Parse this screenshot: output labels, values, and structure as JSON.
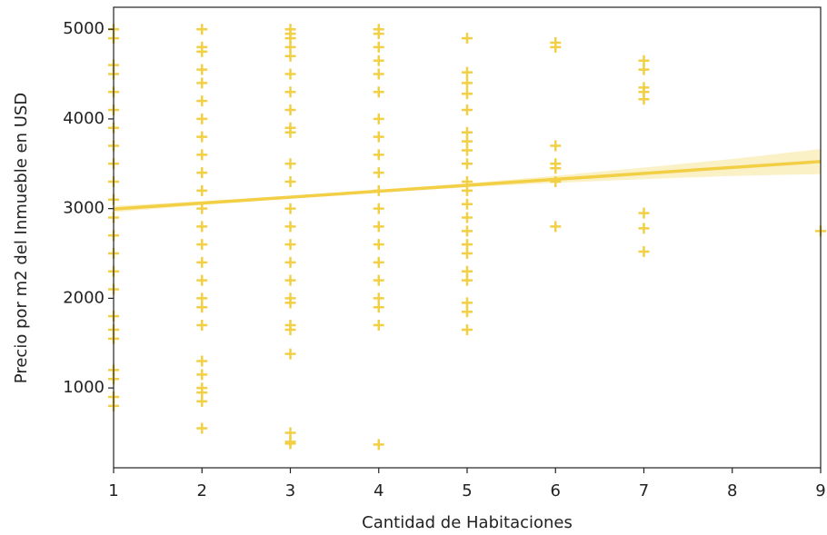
{
  "chart_data": {
    "type": "scatter",
    "xlabel": "Cantidad de Habitaciones",
    "ylabel": "Precio por m2 del Inmueble en USD",
    "color": "#f2cf45",
    "marker": "+",
    "x": [
      1,
      1,
      1,
      1,
      1,
      1,
      1,
      1,
      1,
      1,
      1,
      1,
      1,
      1,
      1,
      1,
      1,
      1,
      1,
      1,
      1,
      1,
      1,
      2,
      2,
      2,
      2,
      2,
      2,
      2,
      2,
      2,
      2,
      2,
      2,
      2,
      2,
      2,
      2,
      2,
      2,
      2,
      2,
      2,
      2,
      2,
      2,
      2,
      3,
      3,
      3,
      3,
      3,
      3,
      3,
      3,
      3,
      3,
      3,
      3,
      3,
      3,
      3,
      3,
      3,
      3,
      3,
      3,
      3,
      3,
      3,
      3,
      3,
      4,
      4,
      4,
      4,
      4,
      4,
      4,
      4,
      4,
      4,
      4,
      4,
      4,
      4,
      4,
      4,
      4,
      4,
      4,
      4,
      5,
      5,
      5,
      5,
      5,
      5,
      5,
      5,
      5,
      5,
      5,
      5,
      5,
      5,
      5,
      5,
      5,
      5,
      5,
      5,
      5,
      6,
      6,
      6,
      6,
      6,
      6,
      6,
      7,
      7,
      7,
      7,
      7,
      7,
      7,
      7,
      9
    ],
    "values": [
      5000,
      4900,
      4600,
      4500,
      4300,
      4100,
      3900,
      3700,
      3500,
      3300,
      3100,
      2900,
      2700,
      2500,
      2300,
      2100,
      1800,
      1650,
      1550,
      1200,
      1100,
      900,
      800,
      5000,
      4800,
      4750,
      4550,
      4400,
      4200,
      4000,
      3800,
      3600,
      3400,
      3200,
      3000,
      2800,
      2600,
      2400,
      2200,
      2000,
      1900,
      1700,
      1300,
      1150,
      1000,
      950,
      850,
      550,
      5000,
      4950,
      4900,
      4800,
      4700,
      4500,
      4300,
      4100,
      3900,
      3850,
      3500,
      3300,
      3000,
      2800,
      2600,
      2400,
      2200,
      2000,
      1950,
      1700,
      1650,
      1380,
      500,
      400,
      380,
      5000,
      4950,
      4800,
      4650,
      4500,
      4300,
      4000,
      3800,
      3600,
      3400,
      3200,
      3000,
      2800,
      2600,
      2400,
      2200,
      2000,
      1900,
      1700,
      370,
      4900,
      4520,
      4400,
      4280,
      4100,
      3850,
      3750,
      3650,
      3500,
      3300,
      3200,
      3050,
      2900,
      2750,
      2600,
      2500,
      2300,
      2200,
      1950,
      1850,
      1650,
      4850,
      4800,
      3700,
      3500,
      3450,
      3300,
      2800,
      4650,
      4550,
      4350,
      4300,
      4220,
      2950,
      2780,
      2520,
      2750
    ],
    "regression": {
      "x": [
        1,
        9
      ],
      "values": [
        2995,
        3525
      ]
    },
    "ci": {
      "x": [
        1,
        2,
        3,
        4,
        5,
        6,
        7,
        8,
        9
      ],
      "lower": [
        2960,
        3039,
        3113,
        3179,
        3238,
        3286,
        3328,
        3364,
        3385
      ],
      "upper": [
        3030,
        3083,
        3143,
        3209,
        3282,
        3366,
        3458,
        3554,
        3665
      ]
    },
    "xlim": [
      1,
      9
    ],
    "ylim": [
      110,
      5245
    ],
    "xticks": [
      1,
      2,
      3,
      4,
      5,
      6,
      7,
      8,
      9
    ],
    "yticks": [
      1000,
      2000,
      3000,
      4000,
      5000
    ],
    "grid": false
  }
}
